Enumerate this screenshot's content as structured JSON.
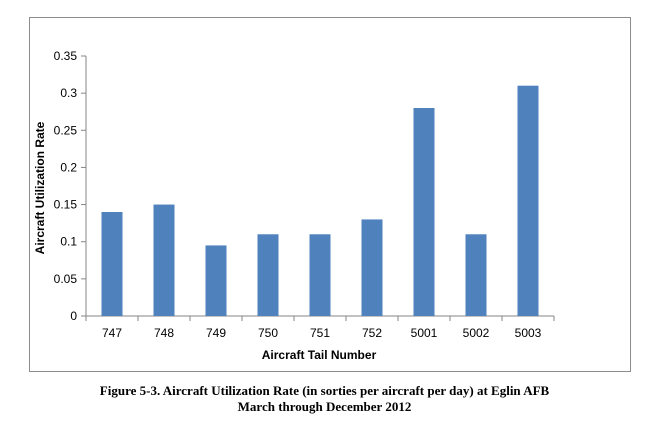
{
  "chart_data": {
    "type": "bar",
    "categories": [
      "747",
      "748",
      "749",
      "750",
      "751",
      "752",
      "5001",
      "5002",
      "5003"
    ],
    "values": [
      0.14,
      0.15,
      0.095,
      0.11,
      0.11,
      0.13,
      0.28,
      0.11,
      0.31
    ],
    "yticks": [
      "0",
      "0.05",
      "0.1",
      "0.15",
      "0.2",
      "0.25",
      "0.3",
      "0.35"
    ],
    "xlabel": "Aircraft Tail Number",
    "ylabel": "Aircraft Utilization Rate",
    "ylim": [
      0,
      0.35
    ],
    "grid": false,
    "legend": "none",
    "colors": {
      "bar": "#4f81bd",
      "axis": "#868686",
      "text": "#000000",
      "frame": "#8c8c8c"
    }
  },
  "caption": {
    "line1": "Figure 5-3.  Aircraft Utilization Rate (in sorties per aircraft per day) at Eglin AFB",
    "line2": "March through December 2012"
  }
}
